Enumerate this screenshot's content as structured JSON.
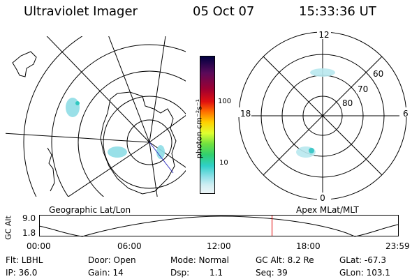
{
  "header": {
    "instrument": "Ultraviolet Imager",
    "date": "05 Oct 07",
    "time": "15:33:36 UT"
  },
  "colorbar": {
    "label": "photon cm⁻²s⁻¹",
    "ticks": [
      "100",
      "10"
    ],
    "scale": "log",
    "colors": [
      "#000040",
      "#5a0a5a",
      "#a00030",
      "#e01010",
      "#ff6a00",
      "#ffd000",
      "#e0ff30",
      "#70e040",
      "#30d070",
      "#30d0c8",
      "#90e0e8",
      "#d0eef2",
      "#eef6f8"
    ]
  },
  "geo_map": {
    "caption": "Geographic Lat/Lon"
  },
  "polar_map": {
    "caption": "Apex MLat/MLT",
    "mlt_labels": {
      "top": "12",
      "bottom": "0",
      "left": "18",
      "right": "6"
    },
    "lat_labels": [
      "60",
      "70",
      "80"
    ]
  },
  "timeline": {
    "ylabel": "GC Alt",
    "ymax": "9.0",
    "ymin": "1.8",
    "xticks": [
      "00:00",
      "06:00",
      "12:00",
      "18:00",
      "23:59"
    ],
    "current_time_fraction": 0.649,
    "marker_color": "#e00000"
  },
  "status": {
    "flt": "Flt: LBHL",
    "ip": "IP: 36.0",
    "door": "Door: Open",
    "gain": "Gain: 14",
    "mode": "Mode: Normal",
    "dsp_label": "Dsp:",
    "dsp_value": "1.1",
    "gc_alt": "GC Alt: 8.2 Re",
    "seq": "Seq: 39",
    "glat": "GLat: -67.3",
    "glon": "GLon: 103.1"
  }
}
